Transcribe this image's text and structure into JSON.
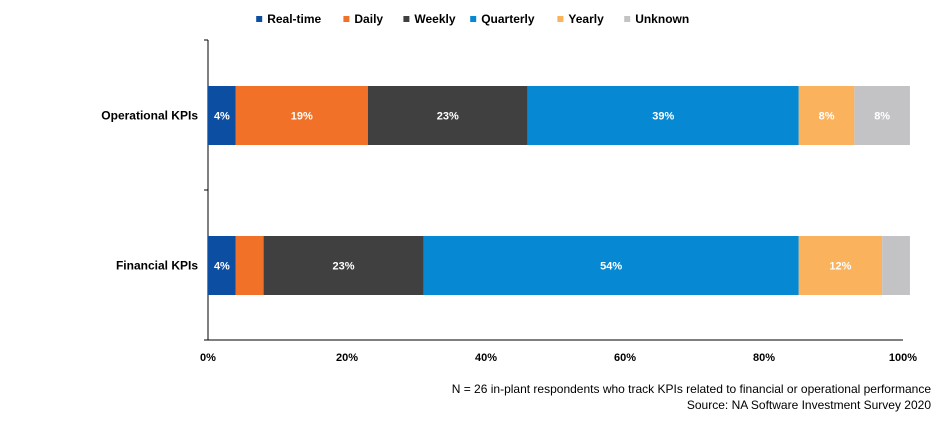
{
  "chart_data": {
    "type": "bar",
    "orientation": "horizontal",
    "stacked": "percent",
    "categories": [
      "Operational KPIs",
      "Financial KPIs"
    ],
    "series": [
      {
        "name": "Real-time",
        "color": "#0b4ea2",
        "values": [
          4,
          4
        ],
        "labels": [
          "4%",
          "4%"
        ]
      },
      {
        "name": "Daily",
        "color": "#f07127",
        "values": [
          19,
          4
        ],
        "labels": [
          "19%",
          ""
        ]
      },
      {
        "name": "Weekly",
        "color": "#404041",
        "values": [
          23,
          23
        ],
        "labels": [
          "23%",
          "23%"
        ]
      },
      {
        "name": "Quarterly",
        "color": "#0688d3",
        "values": [
          39,
          54
        ],
        "labels": [
          "39%",
          "54%"
        ]
      },
      {
        "name": "Yearly",
        "color": "#fbb25c",
        "values": [
          8,
          12
        ],
        "labels": [
          "8%",
          "12%"
        ]
      },
      {
        "name": "Unknown",
        "color": "#c3c3c5",
        "values": [
          8,
          4
        ],
        "labels": [
          "8%",
          ""
        ]
      }
    ],
    "xticks": [
      "0%",
      "20%",
      "40%",
      "60%",
      "80%",
      "100%"
    ],
    "xlim": [
      0,
      100
    ],
    "grid": false,
    "legend_position": "top"
  },
  "footnote": {
    "line1": "N = 26 in-plant respondents who track KPIs related to financial or operational performance",
    "line2": "Source: NA Software Investment Survey 2020"
  }
}
